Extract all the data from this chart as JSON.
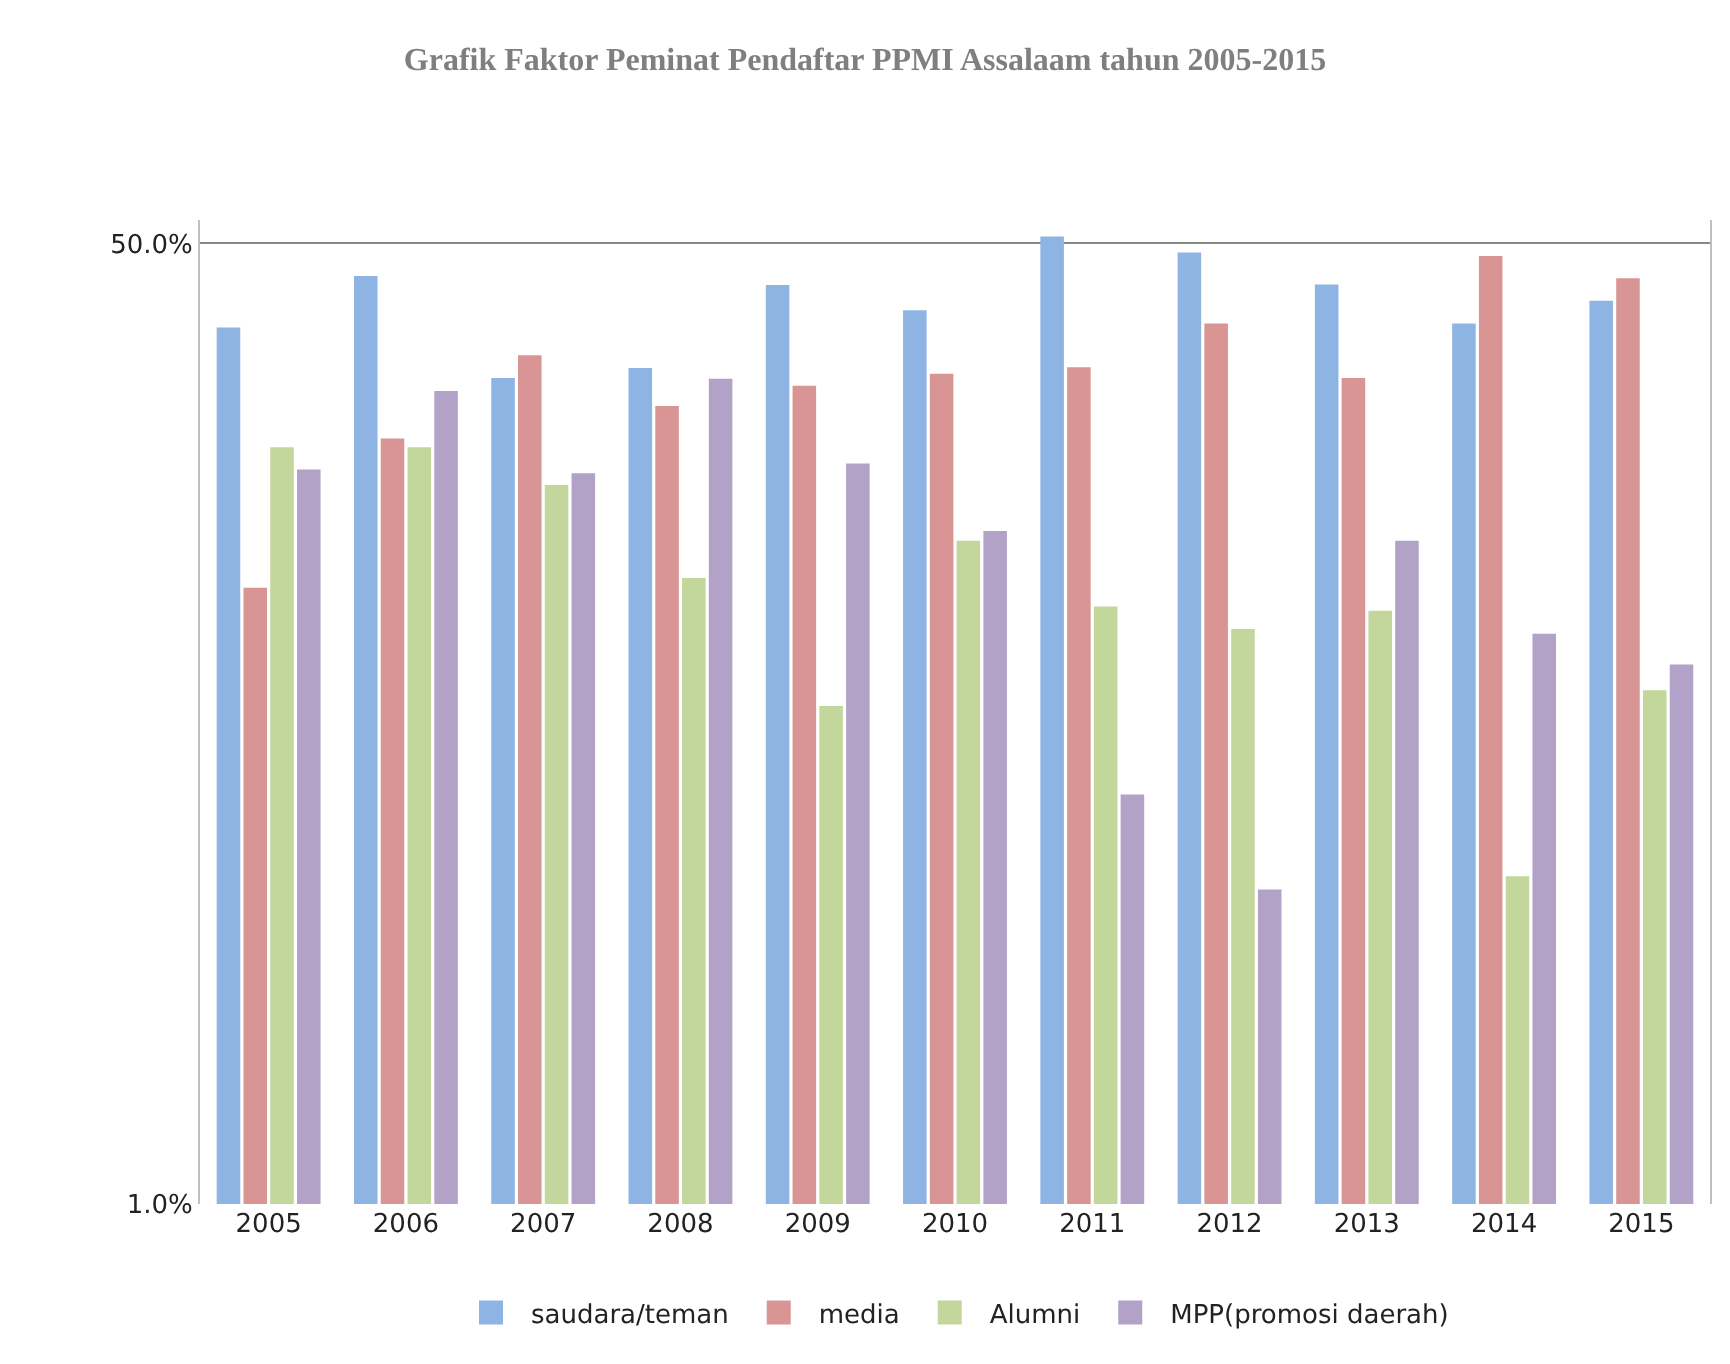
{
  "chart_data": {
    "type": "bar",
    "title": "Grafik Faktor Peminat Pendaftar PPMI Assalaam tahun 2005-2015",
    "categories": [
      "2005",
      "2006",
      "2007",
      "2008",
      "2009",
      "2010",
      "2011",
      "2012",
      "2013",
      "2014",
      "2015"
    ],
    "series": [
      {
        "name": "saudara/teman",
        "color": "#8eb4e3",
        "values": [
          35.5,
          43.8,
          28.9,
          30.1,
          42.2,
          38.1,
          51.4,
          48.2,
          42.3,
          36.1,
          39.6
        ]
      },
      {
        "name": "media",
        "color": "#d99594",
        "values": [
          12.3,
          22.6,
          31.7,
          25.8,
          28.0,
          29.4,
          30.2,
          36.1,
          28.9,
          47.5,
          43.4
        ]
      },
      {
        "name": "Alumni",
        "color": "#c3d69b",
        "values": [
          21.8,
          21.8,
          18.7,
          12.8,
          7.6,
          14.9,
          11.4,
          10.4,
          11.2,
          3.8,
          8.1
        ]
      },
      {
        "name": "MPP(promosi daerah)",
        "color": "#b3a2c7",
        "values": [
          19.9,
          27.4,
          19.6,
          28.8,
          20.4,
          15.5,
          5.3,
          3.6,
          14.9,
          10.2,
          9.0
        ]
      }
    ],
    "log": true,
    "ylim": [
      1,
      55
    ],
    "yticks": [
      {
        "value": 1,
        "label": "1.0%"
      },
      {
        "value": 50,
        "label": "50.0%"
      }
    ],
    "grid": "y",
    "legend": "bottom"
  }
}
